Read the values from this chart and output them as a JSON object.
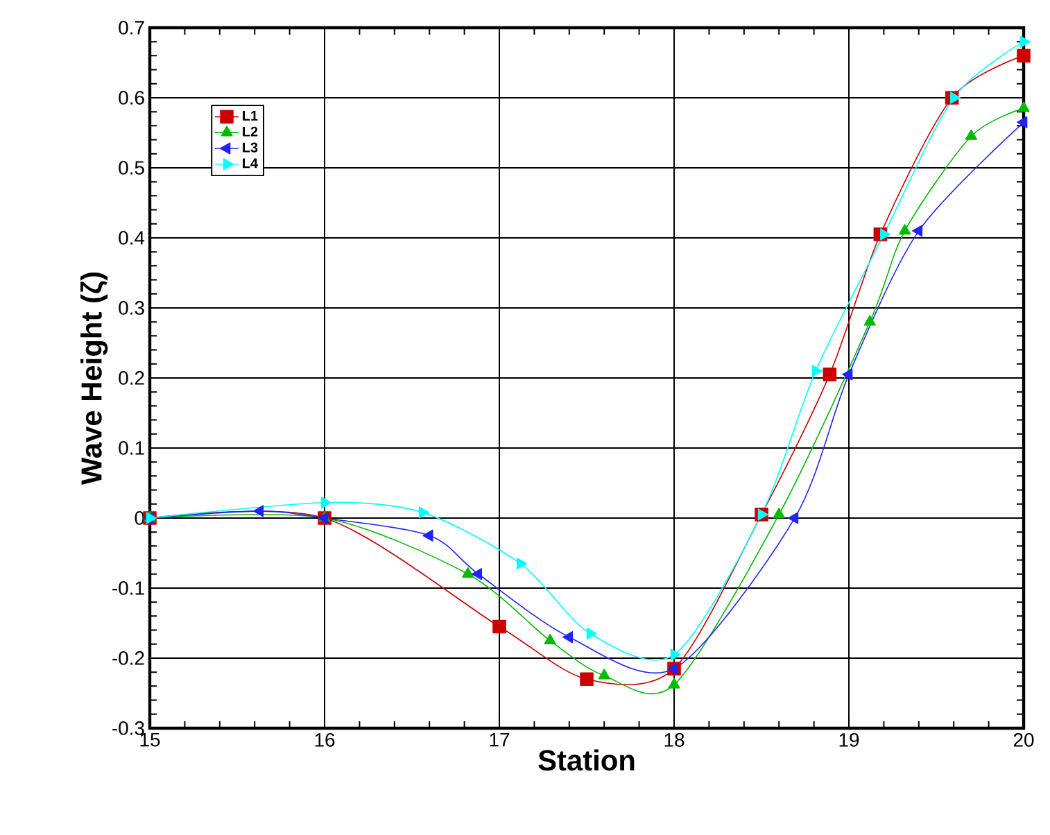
{
  "chart_data": {
    "type": "line",
    "xlabel": "Station",
    "ylabel": "Wave Height (ζ)",
    "xlim": [
      15,
      20
    ],
    "ylim": [
      -0.3,
      0.7
    ],
    "xticks": [
      15,
      16,
      17,
      18,
      19,
      20
    ],
    "yticks": [
      -0.3,
      -0.2,
      -0.1,
      0,
      0.1,
      0.2,
      0.3,
      0.4,
      0.5,
      0.6,
      0.7
    ],
    "grid": true,
    "legend": "top left",
    "line_style": "solid",
    "series": [
      {
        "name": "L1",
        "color": "#cc0000",
        "marker": "square",
        "x": [
          15,
          16,
          17,
          17.5,
          18,
          18.5,
          18.89,
          19.18,
          19.59,
          20
        ],
        "values": [
          0,
          0,
          -0.155,
          -0.23,
          -0.215,
          0.005,
          0.205,
          0.405,
          0.6,
          0.66
        ]
      },
      {
        "name": "L2",
        "color": "#00bb00",
        "marker": "triangle",
        "x": [
          15,
          16,
          16.82,
          17.29,
          17.6,
          18,
          18.6,
          19.12,
          19.32,
          19.7,
          20
        ],
        "values": [
          0,
          0,
          -0.08,
          -0.175,
          -0.225,
          -0.238,
          0.005,
          0.28,
          0.41,
          0.545,
          0.585
        ]
      },
      {
        "name": "L3",
        "color": "#2222ff",
        "marker": "triangle-left",
        "x": [
          15,
          15.63,
          16,
          16.6,
          16.88,
          17.4,
          18,
          18.69,
          19.0,
          19.4,
          20
        ],
        "values": [
          0,
          0.01,
          0,
          -0.025,
          -0.08,
          -0.17,
          -0.215,
          0,
          0.205,
          0.41,
          0.565
        ]
      },
      {
        "name": "L4",
        "color": "#00ffff",
        "marker": "triangle-right",
        "x": [
          15,
          16,
          16.56,
          17.12,
          17.52,
          18,
          18.5,
          18.81,
          19.2,
          19.6,
          20
        ],
        "values": [
          0,
          0.022,
          0.008,
          -0.065,
          -0.165,
          -0.195,
          0.005,
          0.21,
          0.405,
          0.6,
          0.68
        ]
      }
    ]
  }
}
